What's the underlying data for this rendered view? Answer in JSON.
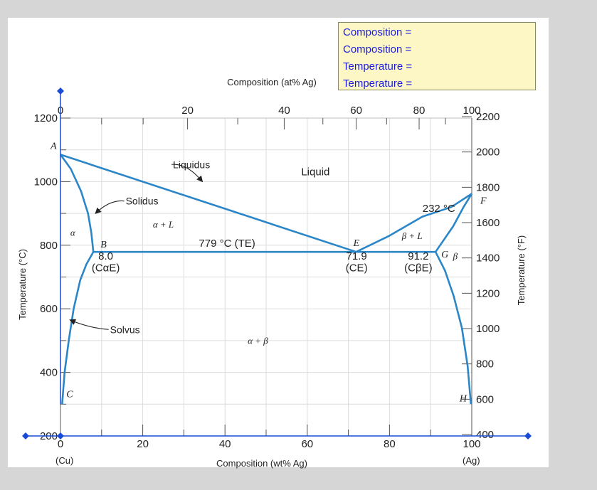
{
  "readout": {
    "lines": [
      "Composition =",
      "Composition =",
      "Temperature =",
      "Temperature ="
    ]
  },
  "colors": {
    "curve": "#2b86c8",
    "handle": "#1a4bd6",
    "text": "#222222",
    "grid": "#dcdcdc",
    "readout_bg": "#fdf7c6",
    "readout_text": "#1c1cdc"
  },
  "chart_data": {
    "type": "line",
    "xlabel_bottom": "Composition (wt% Ag)",
    "xlabel_top": "Composition (at% Ag)",
    "ylabel_left": "Temperature (°C)",
    "ylabel_right": "Temperature (°F)",
    "xlim": [
      0,
      100
    ],
    "ylim": [
      200,
      1200
    ],
    "x_ticks": [
      0,
      20,
      40,
      60,
      80,
      100
    ],
    "x_tick_labels": [
      "0",
      "20",
      "40",
      "60",
      "80",
      "100"
    ],
    "at_ticks": [
      {
        "wt": 0,
        "label": "0"
      },
      {
        "wt": 30.9,
        "label": "20"
      },
      {
        "wt": 54.4,
        "label": "40"
      },
      {
        "wt": 71.9,
        "label": "60"
      },
      {
        "wt": 87.2,
        "label": "80"
      },
      {
        "wt": 100,
        "label": "100"
      }
    ],
    "y_ticks_c": [
      200,
      400,
      600,
      800,
      1000,
      1200
    ],
    "y_tick_labels_c": [
      "200",
      "400",
      "600",
      "800",
      "1000",
      "1200"
    ],
    "y_ticks_f": [
      400,
      600,
      800,
      1000,
      1200,
      1400,
      1600,
      1800,
      2000,
      2200
    ],
    "y_tick_labels_f": [
      "400",
      "600",
      "800",
      "1000",
      "1200",
      "1400",
      "1600",
      "1800",
      "2000",
      "2200"
    ],
    "end_labels": {
      "left": "(Cu)",
      "right": "(Ag)"
    },
    "series": [
      {
        "points": [
          [
            0,
            1085
          ],
          [
            71.9,
            779
          ]
        ]
      },
      {
        "points": [
          [
            71.9,
            779
          ],
          [
            80,
            830
          ],
          [
            88,
            890
          ],
          [
            95,
            920
          ],
          [
            100,
            962
          ]
        ]
      },
      {
        "points": [
          [
            0,
            1085
          ],
          [
            2.5,
            1040
          ],
          [
            5,
            970
          ],
          [
            6.7,
            900
          ],
          [
            7.5,
            840
          ],
          [
            8.0,
            779
          ]
        ]
      },
      {
        "points": [
          [
            8.0,
            779
          ],
          [
            91.2,
            779
          ]
        ]
      },
      {
        "points": [
          [
            8.0,
            779
          ],
          [
            6.3,
            740
          ],
          [
            4.8,
            690
          ],
          [
            3.2,
            600
          ],
          [
            2.0,
            500
          ],
          [
            1.0,
            400
          ],
          [
            0.4,
            300
          ]
        ]
      },
      {
        "points": [
          [
            100,
            962
          ],
          [
            98,
            920
          ],
          [
            95.5,
            860
          ],
          [
            91.2,
            779
          ]
        ]
      },
      {
        "points": [
          [
            91.2,
            779
          ],
          [
            93.5,
            720
          ],
          [
            95.6,
            640
          ],
          [
            97.6,
            540
          ],
          [
            99.0,
            420
          ],
          [
            99.8,
            300
          ]
        ]
      }
    ],
    "points": [
      {
        "label": "A",
        "x": 0,
        "y": 1085
      },
      {
        "label": "B",
        "x": 8.0,
        "y": 779
      },
      {
        "label": "C",
        "x": 0.4,
        "y": 300
      },
      {
        "label": "E",
        "x": 71.9,
        "y": 779
      },
      {
        "label": "F",
        "x": 100,
        "y": 962
      },
      {
        "label": "G",
        "x": 91.2,
        "y": 779
      },
      {
        "label": "H",
        "x": 99.8,
        "y": 300
      }
    ],
    "annotations": [
      {
        "text": "Liquidus",
        "x": 34.5,
        "y": 1000,
        "ax": 27,
        "ay": 1054
      },
      {
        "text": "Solidus",
        "x": 8.5,
        "y": 900,
        "ax": 15.5,
        "ay": 939
      },
      {
        "text": "Solvus",
        "x": 2.3,
        "y": 565,
        "ax": 11.7,
        "ay": 535
      }
    ],
    "texts": [
      {
        "text": "Liquid",
        "x": 62,
        "y": 1020
      },
      {
        "text": "779 °C (TE)",
        "x": 40.5,
        "y": 795
      },
      {
        "text": "8.0",
        "x": 11,
        "y": 755
      },
      {
        "text": "(CαE)",
        "x": 11,
        "y": 718
      },
      {
        "text": "71.9",
        "x": 72,
        "y": 755
      },
      {
        "text": "(CE)",
        "x": 72,
        "y": 718
      },
      {
        "text": "91.2",
        "x": 87,
        "y": 755
      },
      {
        "text": "(CβE)",
        "x": 87,
        "y": 718
      },
      {
        "text": "232 °C",
        "x": 92,
        "y": 905
      }
    ],
    "region_labels": [
      {
        "text": "α",
        "x": 3,
        "y": 830
      },
      {
        "text": "α + L",
        "x": 25,
        "y": 855
      },
      {
        "text": "β + L",
        "x": 85.5,
        "y": 820
      },
      {
        "text": "β",
        "x": 96,
        "y": 756
      },
      {
        "text": "α + β",
        "x": 48,
        "y": 490
      }
    ],
    "grid": true
  }
}
